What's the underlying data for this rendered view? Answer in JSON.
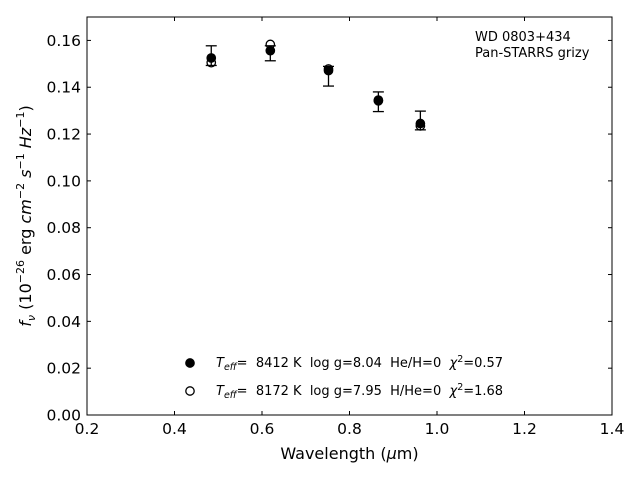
{
  "chart_data": {
    "type": "scatter",
    "annotation": [
      "WD 0803+434",
      "Pan-STARRS grizy"
    ],
    "xlabel": {
      "base": "Wavelength (",
      "mu": "μ",
      "unit": "m)"
    },
    "ylabel": {
      "f": "f",
      "nu": "ν",
      "open": " (10",
      "e1": "−26",
      "erg": " erg ",
      "cm": "cm",
      "e2": "−2",
      "s": " s",
      "e3": "−1",
      "hz": " Hz",
      "e4": "−1",
      "close": ")"
    },
    "xlim": [
      0.2,
      1.4
    ],
    "ylim": [
      0.0,
      0.17
    ],
    "x_ticks": [
      0.2,
      0.4,
      0.6,
      0.8,
      1.0,
      1.2,
      1.4
    ],
    "x_tick_labels": [
      "0.2",
      "0.4",
      "0.6",
      "0.8",
      "1.0",
      "1.2",
      "1.4"
    ],
    "y_ticks": [
      0.0,
      0.02,
      0.04,
      0.06,
      0.08,
      0.1,
      0.12,
      0.14,
      0.16
    ],
    "y_tick_labels": [
      "0.00",
      "0.02",
      "0.04",
      "0.06",
      "0.08",
      "0.10",
      "0.12",
      "0.14",
      "0.16"
    ],
    "observed": {
      "x": [
        0.484,
        0.619,
        0.752,
        0.866,
        0.962
      ],
      "y": [
        0.1535,
        0.1545,
        0.1447,
        0.1338,
        0.1258
      ],
      "yerr": [
        0.0042,
        0.0032,
        0.0042,
        0.0042,
        0.004
      ]
    },
    "series": [
      {
        "marker": "filled",
        "x": [
          0.484,
          0.619,
          0.752,
          0.866,
          0.962
        ],
        "y": [
          0.1525,
          0.1556,
          0.1471,
          0.1345,
          0.1245
        ]
      },
      {
        "marker": "open",
        "x": [
          0.484,
          0.619,
          0.752,
          0.866,
          0.962
        ],
        "y": [
          0.1505,
          0.1583,
          0.1478,
          0.1342,
          0.1235
        ]
      }
    ],
    "legend": [
      {
        "marker": "filled",
        "t": "T",
        "sub": "eff",
        "mid": "=  8412 K  log g=8.04  He/H=0  ",
        "chi": "χ",
        "sup": "2",
        "end": "=0.57"
      },
      {
        "marker": "open",
        "t": "T",
        "sub": "eff",
        "mid": "=  8172 K  log g=7.95  H/He=0  ",
        "chi": "χ",
        "sup": "2",
        "end": "=1.68"
      }
    ],
    "legend_position": "lower-center",
    "grid": false,
    "colors": {
      "marker": "#000000",
      "background": "#ffffff"
    }
  }
}
